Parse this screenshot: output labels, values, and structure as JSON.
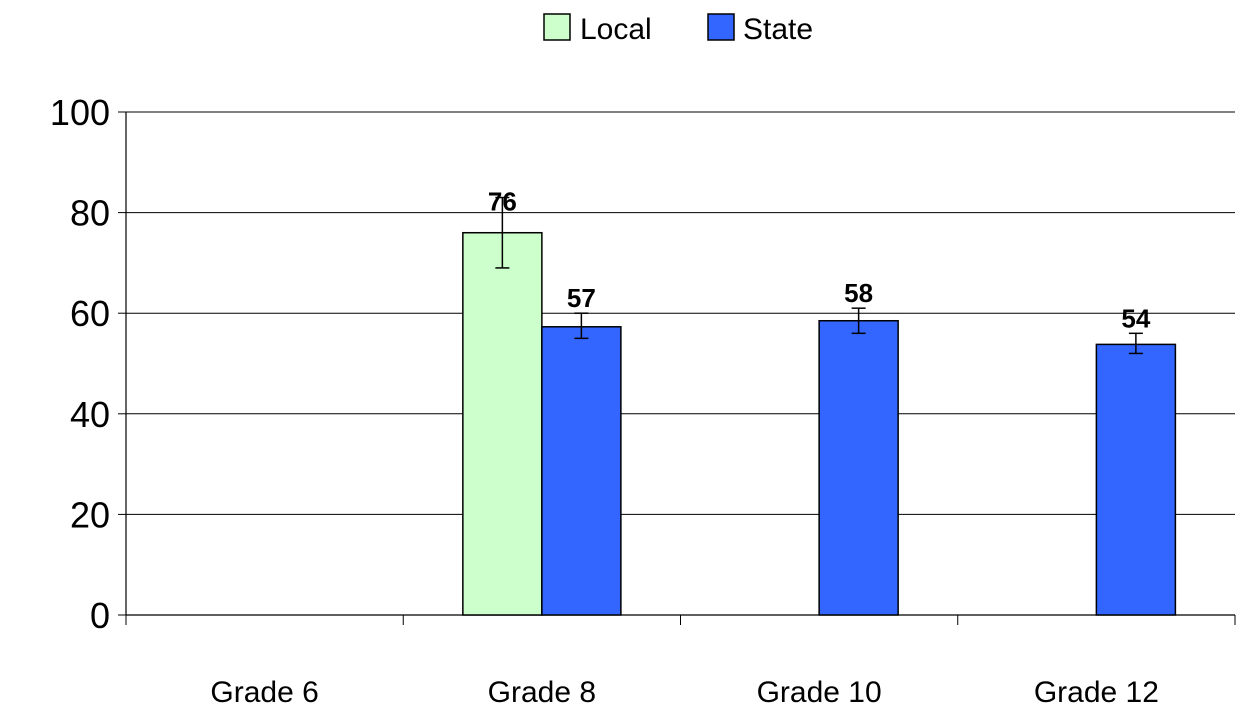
{
  "chart_data": {
    "type": "bar",
    "title": "",
    "xlabel": "",
    "ylabel": "",
    "ylim": [
      0,
      100
    ],
    "yticks": [
      0,
      20,
      40,
      60,
      80,
      100
    ],
    "grid": true,
    "legend_position": "top-center",
    "categories": [
      "Grade 6",
      "Grade 8",
      "Grade 10",
      "Grade 12"
    ],
    "series": [
      {
        "name": "Local",
        "color": "#ccffcc",
        "values": [
          null,
          76,
          null,
          null
        ],
        "error_low": [
          null,
          69,
          null,
          null
        ],
        "error_high": [
          null,
          83,
          null,
          null
        ],
        "labels": [
          "",
          "76",
          "",
          ""
        ]
      },
      {
        "name": "State",
        "color": "#3366ff",
        "values": [
          null,
          57.3,
          58.5,
          53.8
        ],
        "error_low": [
          null,
          55,
          56,
          52
        ],
        "error_high": [
          null,
          60,
          61,
          56
        ],
        "labels": [
          "",
          "57",
          "58",
          "54"
        ]
      }
    ]
  }
}
